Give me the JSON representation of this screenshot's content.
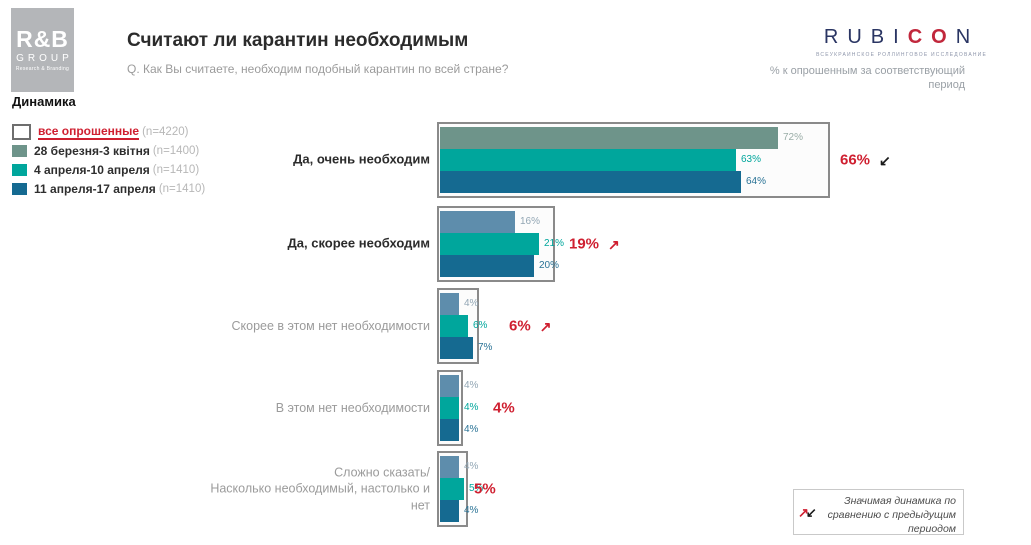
{
  "header": {
    "logo": {
      "line1": "R&B",
      "line2": "GROUP",
      "line3": "Research & Branding"
    },
    "section_label": "Динамика",
    "title": "Считают ли карантин необходимым",
    "subtitle": "Q. Как Вы считаете, необходим подобный карантин по всей стране?",
    "rubicon": {
      "part_navy": "RUBI",
      "part_red": "CO",
      "part_navy2": "N",
      "tagline": "ВСЕУКРАИНСКОЕ РОЛЛИНГОВОЕ ИССЛЕДОВАНИЕ"
    },
    "unit_note_line1": "% к опрошенным за соответствующий",
    "unit_note_line2": "период"
  },
  "legend": {
    "items": [
      {
        "label": "все опрошенные",
        "n": "(n=4220)",
        "swatch": "#ffffff",
        "swatch_border": "#6e6e6e",
        "label_color": "#cf1f30",
        "underline": true
      },
      {
        "label": "28 березня-3 квітня",
        "n": "(n=1400)",
        "swatch": "#6e948a"
      },
      {
        "label": "4 апреля-10 апреля",
        "n": "(n=1410)",
        "swatch": "#00a69c"
      },
      {
        "label": "11 апреля-17 апреля",
        "n": "(n=1410)",
        "swatch": "#156a91"
      }
    ]
  },
  "chart_data": {
    "type": "bar",
    "orientation": "horizontal",
    "unit": "%",
    "title": "Считают ли карантин необходимым",
    "categories": [
      "Да, очень необходим",
      "Да, скорее необходим",
      "Скорее в этом нет необходимости",
      "В этом нет необходимости",
      "Сложно сказать/\nНасколько необходимый, настолько и\nнет"
    ],
    "category_emphasis": [
      true,
      true,
      false,
      false,
      false
    ],
    "series": [
      {
        "name": "28 березня-3 квітня (n=1400)",
        "values": [
          72,
          16,
          4,
          4,
          4
        ],
        "color": "#6e948a",
        "color_alt": "#5e8dac",
        "label_color": "#9aada7",
        "label_color_alt": "#92a6b4"
      },
      {
        "name": "4 апреля-10 апреля (n=1410)",
        "values": [
          63,
          21,
          6,
          4,
          5
        ],
        "color": "#00a69c",
        "label_color": "#00a69c"
      },
      {
        "name": "11 апреля-17 апреля (n=1410)",
        "values": [
          64,
          20,
          7,
          4,
          4
        ],
        "color": "#156a91",
        "label_color": "#2a7396"
      }
    ],
    "totals": {
      "name": "все опрошенные (n=4220)",
      "values": [
        66,
        19,
        6,
        4,
        5
      ],
      "color": "#cf1f30"
    },
    "trend": [
      "down",
      "up",
      "up",
      null,
      null
    ],
    "trend_colors": {
      "up": "#cf1f30",
      "down": "#1a1a1a"
    },
    "axis": {
      "xlim": [
        0,
        100
      ],
      "grid": false,
      "value_labels": true,
      "legend_position": "top-left"
    }
  },
  "footnote": {
    "text": "Значимая динамика по сравнению с предыдущим периодом",
    "arrow_up": "↗",
    "arrow_down": "↙"
  }
}
